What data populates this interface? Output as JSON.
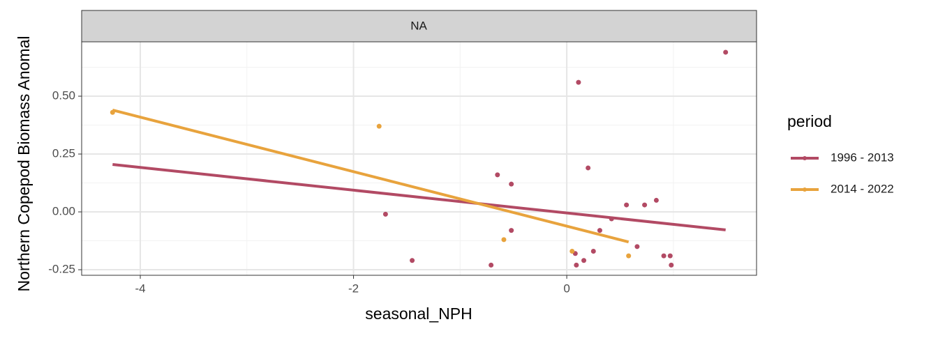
{
  "chart_data": {
    "type": "scatter",
    "facet": "NA",
    "x_label": "seasonal_NPH",
    "y_label": "Northern Copepod Biomass Anomal",
    "legend_title": "period",
    "xlim": [
      -4.55,
      1.78
    ],
    "ylim": [
      -0.274,
      0.735
    ],
    "xticks": [
      -4,
      -2,
      0
    ],
    "yticks": [
      {
        "value": -0.25,
        "label": "-0.25"
      },
      {
        "value": 0,
        "label": "0.00"
      },
      {
        "value": 0.25,
        "label": "0.25"
      },
      {
        "value": 0.5,
        "label": "0.50"
      }
    ],
    "xminor": [
      -3,
      -1,
      1
    ],
    "yminor": [
      -0.125,
      0.125,
      0.375,
      0.625
    ],
    "grid": true,
    "legend": "right",
    "series": [
      {
        "name": "1996 - 2013",
        "color": "#b24a64",
        "x": [
          1.49,
          0.11,
          0.2,
          -0.65,
          -0.52,
          -1.7,
          0.84,
          0.73,
          0.56,
          0.42,
          0.31,
          -0.52,
          0.66,
          0.08,
          0.25,
          0.91,
          0.97,
          0.16,
          -1.45,
          -0.71,
          0.09,
          0.98
        ],
        "values": [
          0.69,
          0.56,
          0.19,
          0.16,
          0.12,
          -0.01,
          0.05,
          0.03,
          0.03,
          -0.03,
          -0.08,
          -0.08,
          -0.15,
          -0.18,
          -0.17,
          -0.19,
          -0.19,
          -0.21,
          -0.21,
          -0.23,
          -0.23,
          -0.23
        ],
        "fit_x": [
          -4.26,
          1.49
        ],
        "fit_y": [
          0.205,
          -0.078
        ]
      },
      {
        "name": "2014 - 2022",
        "color": "#e8a33d",
        "x": [
          -4.26,
          -1.76,
          -0.59,
          0.05,
          0.58
        ],
        "values": [
          0.43,
          0.37,
          -0.12,
          -0.17,
          -0.19
        ],
        "fit_x": [
          -4.26,
          0.58
        ],
        "fit_y": [
          0.44,
          -0.13
        ]
      }
    ]
  }
}
